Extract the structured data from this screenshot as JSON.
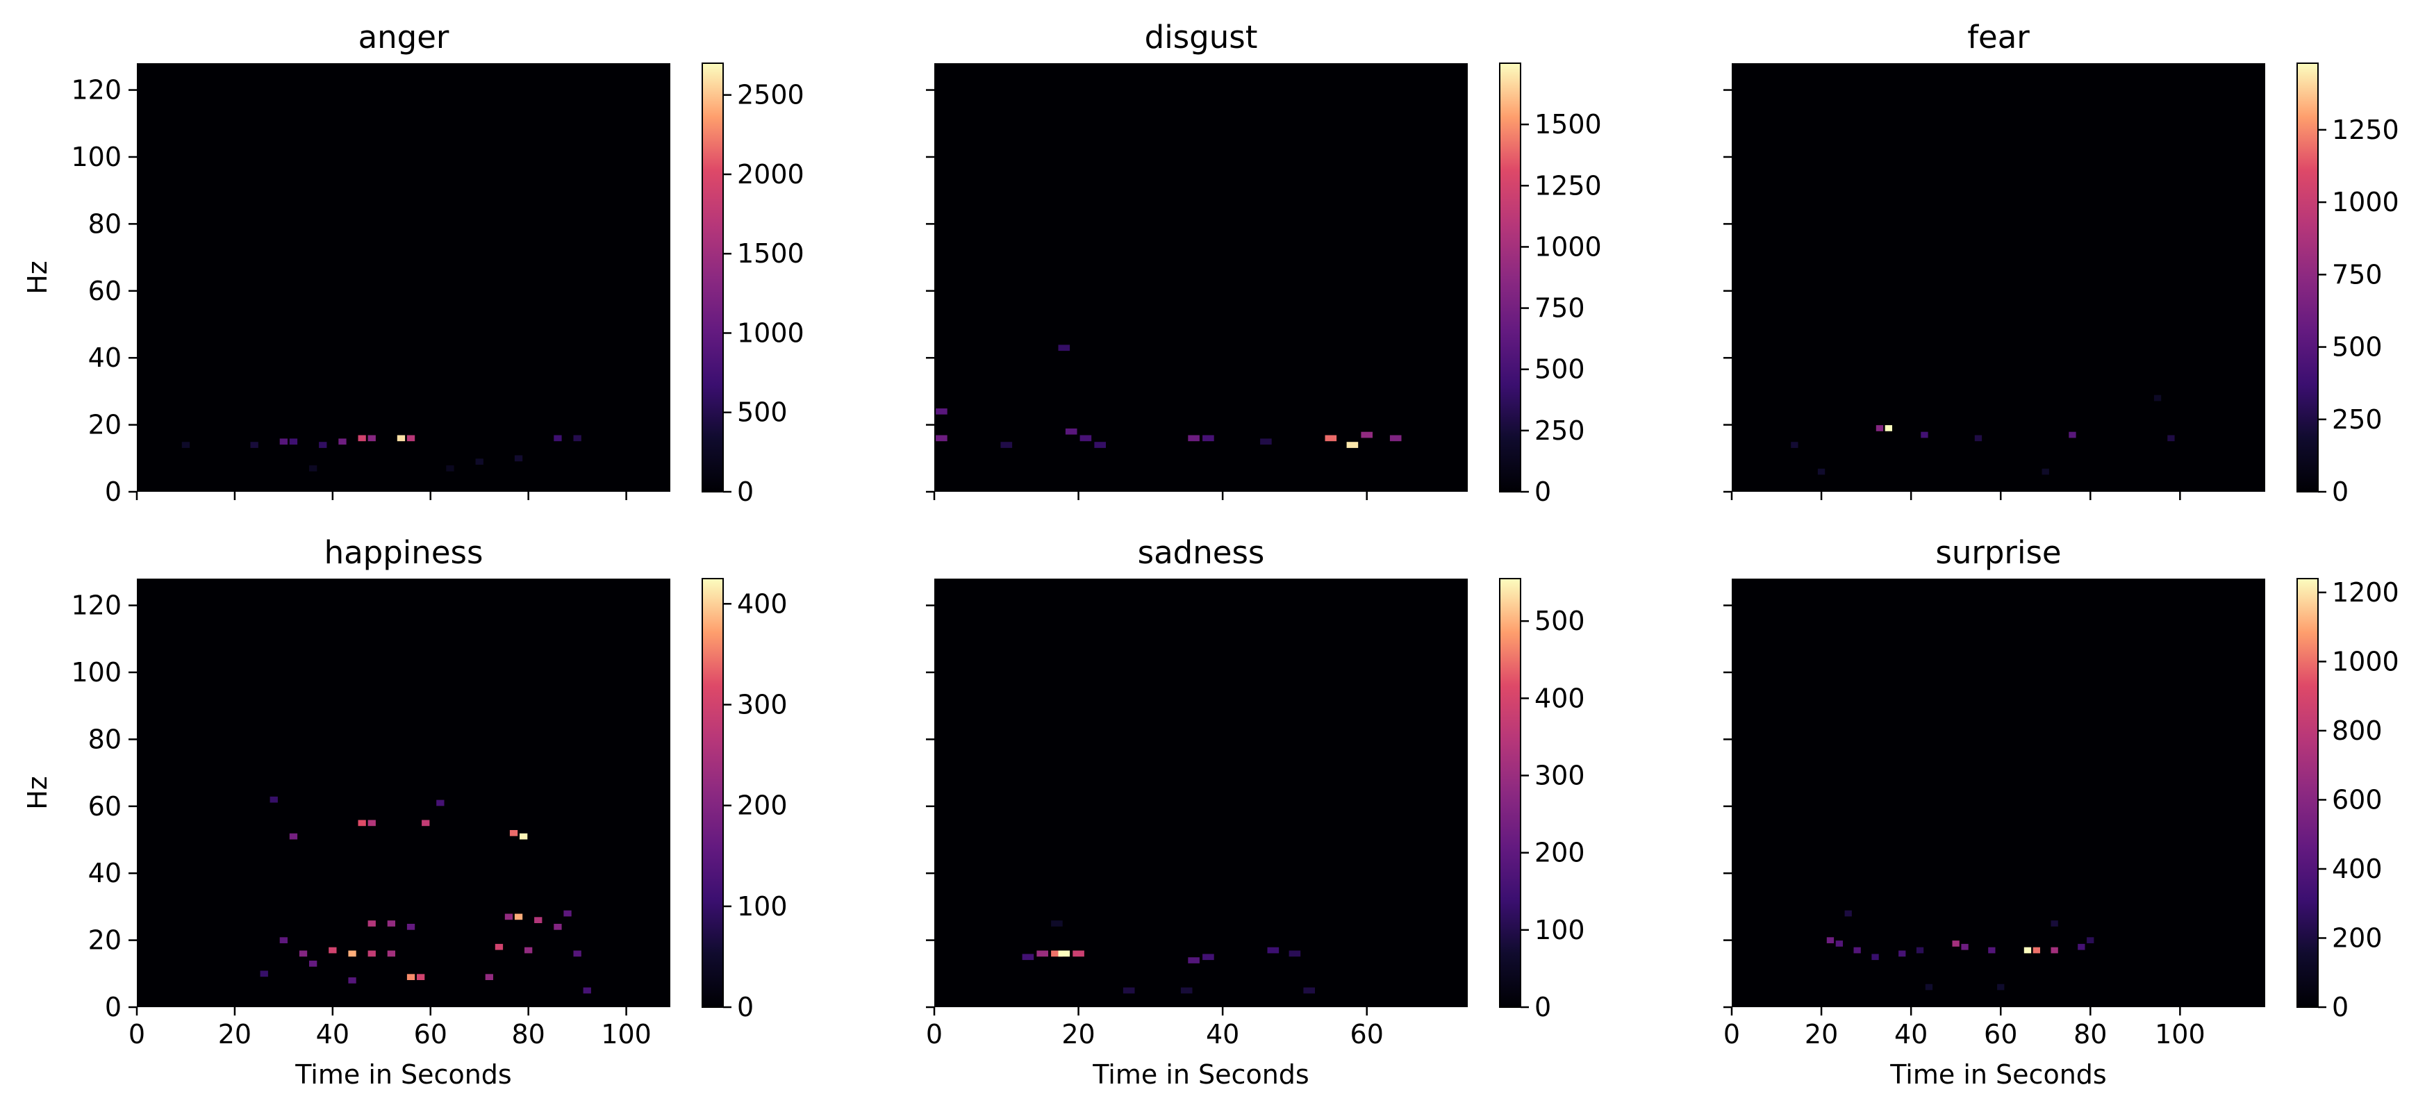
{
  "figure": {
    "ylabel": "Hz",
    "xlabel": "Time in Seconds",
    "colormap": "magma",
    "background_color": "#000004"
  },
  "chart_data": [
    {
      "type": "heatmap",
      "title": "anger",
      "xlim": [
        0,
        109
      ],
      "ylim": [
        0,
        128
      ],
      "xticks": [
        0,
        20,
        40,
        60,
        80,
        100
      ],
      "yticks": [
        0,
        20,
        40,
        60,
        80,
        100,
        120
      ],
      "colorbar": {
        "min": 0,
        "max": 2700,
        "ticks": [
          0,
          500,
          1000,
          1500,
          2000,
          2500
        ]
      },
      "hotspots": [
        {
          "x": 30,
          "y": 15,
          "value": 900
        },
        {
          "x": 32,
          "y": 15,
          "value": 700
        },
        {
          "x": 38,
          "y": 14,
          "value": 600
        },
        {
          "x": 42,
          "y": 15,
          "value": 1100
        },
        {
          "x": 46,
          "y": 16,
          "value": 1900
        },
        {
          "x": 48,
          "y": 16,
          "value": 1300
        },
        {
          "x": 54,
          "y": 16,
          "value": 2600
        },
        {
          "x": 56,
          "y": 16,
          "value": 1700
        },
        {
          "x": 24,
          "y": 14,
          "value": 400
        },
        {
          "x": 10,
          "y": 14,
          "value": 300
        },
        {
          "x": 86,
          "y": 16,
          "value": 700
        },
        {
          "x": 90,
          "y": 16,
          "value": 500
        },
        {
          "x": 78,
          "y": 10,
          "value": 350
        },
        {
          "x": 70,
          "y": 9,
          "value": 300
        },
        {
          "x": 36,
          "y": 7,
          "value": 250
        },
        {
          "x": 64,
          "y": 7,
          "value": 220
        }
      ]
    },
    {
      "type": "heatmap",
      "title": "disgust",
      "xlim": [
        0,
        74
      ],
      "ylim": [
        0,
        128
      ],
      "xticks": [
        0,
        20,
        40,
        60
      ],
      "yticks": [
        0,
        20,
        40,
        60,
        80,
        100,
        120
      ],
      "colorbar": {
        "min": 0,
        "max": 1750,
        "ticks": [
          0,
          250,
          500,
          750,
          1000,
          1250,
          1500
        ]
      },
      "hotspots": [
        {
          "x": 1,
          "y": 24,
          "value": 600
        },
        {
          "x": 1,
          "y": 16,
          "value": 700
        },
        {
          "x": 19,
          "y": 18,
          "value": 600
        },
        {
          "x": 21,
          "y": 16,
          "value": 500
        },
        {
          "x": 18,
          "y": 43,
          "value": 400
        },
        {
          "x": 23,
          "y": 14,
          "value": 400
        },
        {
          "x": 36,
          "y": 16,
          "value": 700
        },
        {
          "x": 38,
          "y": 16,
          "value": 500
        },
        {
          "x": 55,
          "y": 16,
          "value": 1400
        },
        {
          "x": 58,
          "y": 14,
          "value": 1700
        },
        {
          "x": 60,
          "y": 17,
          "value": 900
        },
        {
          "x": 64,
          "y": 16,
          "value": 800
        },
        {
          "x": 10,
          "y": 14,
          "value": 300
        },
        {
          "x": 46,
          "y": 15,
          "value": 300
        }
      ]
    },
    {
      "type": "heatmap",
      "title": "fear",
      "xlim": [
        0,
        119
      ],
      "ylim": [
        0,
        128
      ],
      "xticks": [],
      "yticks": [
        0,
        20,
        40,
        60,
        80,
        100,
        120
      ],
      "colorbar": {
        "min": 0,
        "max": 1480,
        "ticks": [
          0,
          250,
          500,
          750,
          1000,
          1250
        ]
      },
      "hotspots": [
        {
          "x": 35,
          "y": 19,
          "value": 1480
        },
        {
          "x": 33,
          "y": 19,
          "value": 700
        },
        {
          "x": 43,
          "y": 17,
          "value": 400
        },
        {
          "x": 76,
          "y": 17,
          "value": 500
        },
        {
          "x": 55,
          "y": 16,
          "value": 250
        },
        {
          "x": 14,
          "y": 14,
          "value": 200
        },
        {
          "x": 98,
          "y": 16,
          "value": 250
        },
        {
          "x": 95,
          "y": 28,
          "value": 150
        },
        {
          "x": 20,
          "y": 6,
          "value": 180
        },
        {
          "x": 70,
          "y": 6,
          "value": 160
        }
      ]
    },
    {
      "type": "heatmap",
      "title": "happiness",
      "xlim": [
        0,
        109
      ],
      "ylim": [
        0,
        128
      ],
      "xticks": [
        0,
        20,
        40,
        60,
        80,
        100
      ],
      "yticks": [
        0,
        20,
        40,
        60,
        80,
        100,
        120
      ],
      "colorbar": {
        "min": 0,
        "max": 425,
        "ticks": [
          0,
          100,
          200,
          300,
          400
        ]
      },
      "hotspots": [
        {
          "x": 32,
          "y": 51,
          "value": 180
        },
        {
          "x": 46,
          "y": 55,
          "value": 320
        },
        {
          "x": 48,
          "y": 55,
          "value": 260
        },
        {
          "x": 59,
          "y": 55,
          "value": 280
        },
        {
          "x": 77,
          "y": 52,
          "value": 340
        },
        {
          "x": 79,
          "y": 51,
          "value": 420
        },
        {
          "x": 62,
          "y": 61,
          "value": 120
        },
        {
          "x": 28,
          "y": 62,
          "value": 100
        },
        {
          "x": 48,
          "y": 25,
          "value": 260
        },
        {
          "x": 52,
          "y": 25,
          "value": 220
        },
        {
          "x": 56,
          "y": 24,
          "value": 160
        },
        {
          "x": 76,
          "y": 27,
          "value": 220
        },
        {
          "x": 78,
          "y": 27,
          "value": 380
        },
        {
          "x": 82,
          "y": 26,
          "value": 260
        },
        {
          "x": 86,
          "y": 24,
          "value": 200
        },
        {
          "x": 88,
          "y": 28,
          "value": 150
        },
        {
          "x": 30,
          "y": 20,
          "value": 150
        },
        {
          "x": 34,
          "y": 16,
          "value": 200
        },
        {
          "x": 40,
          "y": 17,
          "value": 300
        },
        {
          "x": 44,
          "y": 16,
          "value": 380
        },
        {
          "x": 48,
          "y": 16,
          "value": 280
        },
        {
          "x": 52,
          "y": 16,
          "value": 240
        },
        {
          "x": 36,
          "y": 13,
          "value": 160
        },
        {
          "x": 74,
          "y": 18,
          "value": 300
        },
        {
          "x": 80,
          "y": 17,
          "value": 220
        },
        {
          "x": 90,
          "y": 16,
          "value": 140
        },
        {
          "x": 56,
          "y": 9,
          "value": 360
        },
        {
          "x": 58,
          "y": 9,
          "value": 300
        },
        {
          "x": 72,
          "y": 9,
          "value": 220
        },
        {
          "x": 44,
          "y": 8,
          "value": 140
        },
        {
          "x": 92,
          "y": 5,
          "value": 120
        },
        {
          "x": 26,
          "y": 10,
          "value": 100
        }
      ]
    },
    {
      "type": "heatmap",
      "title": "sadness",
      "xlim": [
        0,
        74
      ],
      "ylim": [
        0,
        128
      ],
      "xticks": [
        0,
        20,
        40,
        60
      ],
      "yticks": [
        0,
        20,
        40,
        60,
        80,
        100,
        120
      ],
      "colorbar": {
        "min": 0,
        "max": 555,
        "ticks": [
          0,
          100,
          200,
          300,
          400,
          500
        ]
      },
      "hotspots": [
        {
          "x": 17,
          "y": 16,
          "value": 450
        },
        {
          "x": 18,
          "y": 16,
          "value": 555
        },
        {
          "x": 15,
          "y": 16,
          "value": 300
        },
        {
          "x": 20,
          "y": 16,
          "value": 380
        },
        {
          "x": 13,
          "y": 15,
          "value": 150
        },
        {
          "x": 36,
          "y": 14,
          "value": 180
        },
        {
          "x": 38,
          "y": 15,
          "value": 150
        },
        {
          "x": 47,
          "y": 17,
          "value": 140
        },
        {
          "x": 50,
          "y": 16,
          "value": 110
        },
        {
          "x": 27,
          "y": 5,
          "value": 90
        },
        {
          "x": 35,
          "y": 5,
          "value": 80
        },
        {
          "x": 52,
          "y": 5,
          "value": 90
        },
        {
          "x": 17,
          "y": 25,
          "value": 60
        }
      ]
    },
    {
      "type": "heatmap",
      "title": "surprise",
      "xlim": [
        0,
        119
      ],
      "ylim": [
        0,
        128
      ],
      "xticks": [
        0,
        20,
        40,
        60,
        80,
        100
      ],
      "yticks": [
        0,
        20,
        40,
        60,
        80,
        100,
        120
      ],
      "colorbar": {
        "min": 0,
        "max": 1240,
        "ticks": [
          0,
          200,
          400,
          600,
          800,
          1000,
          1200
        ]
      },
      "hotspots": [
        {
          "x": 22,
          "y": 20,
          "value": 500
        },
        {
          "x": 24,
          "y": 19,
          "value": 400
        },
        {
          "x": 28,
          "y": 17,
          "value": 400
        },
        {
          "x": 32,
          "y": 15,
          "value": 300
        },
        {
          "x": 38,
          "y": 16,
          "value": 350
        },
        {
          "x": 42,
          "y": 17,
          "value": 250
        },
        {
          "x": 50,
          "y": 19,
          "value": 700
        },
        {
          "x": 52,
          "y": 18,
          "value": 500
        },
        {
          "x": 58,
          "y": 17,
          "value": 400
        },
        {
          "x": 66,
          "y": 17,
          "value": 1240
        },
        {
          "x": 68,
          "y": 17,
          "value": 1000
        },
        {
          "x": 72,
          "y": 17,
          "value": 700
        },
        {
          "x": 78,
          "y": 18,
          "value": 350
        },
        {
          "x": 80,
          "y": 20,
          "value": 250
        },
        {
          "x": 26,
          "y": 28,
          "value": 200
        },
        {
          "x": 72,
          "y": 25,
          "value": 180
        },
        {
          "x": 44,
          "y": 6,
          "value": 150
        },
        {
          "x": 60,
          "y": 6,
          "value": 150
        }
      ]
    }
  ]
}
